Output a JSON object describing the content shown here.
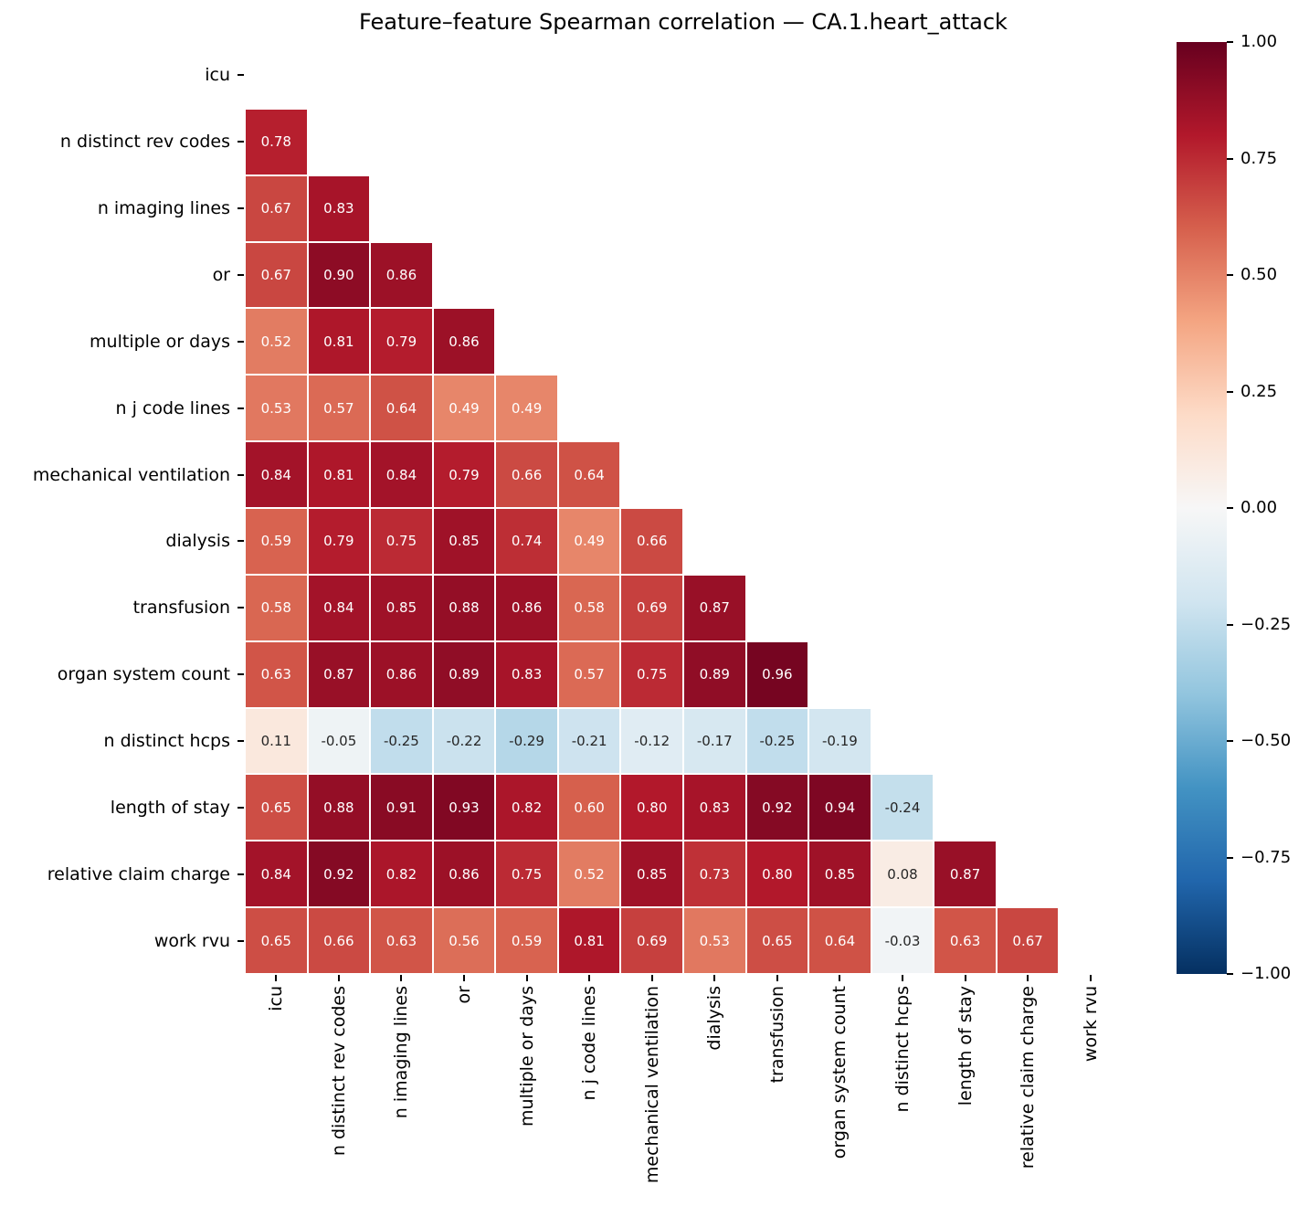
{
  "title": "Feature–feature Spearman correlation — CA.1.heart_attack",
  "chart_data": {
    "type": "heatmap",
    "title": "Feature–feature Spearman correlation — CA.1.heart_attack",
    "labels": [
      "icu",
      "n distinct rev codes",
      "n imaging lines",
      "or",
      "multiple or days",
      "n j code lines",
      "mechanical ventilation",
      "dialysis",
      "transfusion",
      "organ system count",
      "n distinct hcps",
      "length of stay",
      "relative claim charge",
      "work rvu"
    ],
    "mask": "upper triangle and diagonal hidden",
    "matrix_lower_triangle": [
      [],
      [
        0.78
      ],
      [
        0.67,
        0.83
      ],
      [
        0.67,
        0.9,
        0.86
      ],
      [
        0.52,
        0.81,
        0.79,
        0.86
      ],
      [
        0.53,
        0.57,
        0.64,
        0.49,
        0.49
      ],
      [
        0.84,
        0.81,
        0.84,
        0.79,
        0.66,
        0.64
      ],
      [
        0.59,
        0.79,
        0.75,
        0.85,
        0.74,
        0.49,
        0.66
      ],
      [
        0.58,
        0.84,
        0.85,
        0.88,
        0.86,
        0.58,
        0.69,
        0.87
      ],
      [
        0.63,
        0.87,
        0.86,
        0.89,
        0.83,
        0.57,
        0.75,
        0.89,
        0.96
      ],
      [
        0.11,
        -0.05,
        -0.25,
        -0.22,
        -0.29,
        -0.21,
        -0.12,
        -0.17,
        -0.25,
        -0.19
      ],
      [
        0.65,
        0.88,
        0.91,
        0.93,
        0.82,
        0.6,
        0.8,
        0.83,
        0.92,
        0.94,
        -0.24
      ],
      [
        0.84,
        0.92,
        0.82,
        0.86,
        0.75,
        0.52,
        0.85,
        0.73,
        0.8,
        0.85,
        0.08,
        0.87
      ],
      [
        0.65,
        0.66,
        0.63,
        0.56,
        0.59,
        0.81,
        0.69,
        0.53,
        0.65,
        0.64,
        -0.03,
        0.63,
        0.67
      ]
    ],
    "value_format": "2 decimals",
    "colormap": "RdBu_r",
    "vmin": -1.0,
    "vmax": 1.0,
    "grid_on": true,
    "legend_position": "right colorbar",
    "colorbar_ticks": [
      {
        "value": 1.0,
        "label": "1.00"
      },
      {
        "value": 0.75,
        "label": "0.75"
      },
      {
        "value": 0.5,
        "label": "0.50"
      },
      {
        "value": 0.25,
        "label": "0.25"
      },
      {
        "value": 0.0,
        "label": "0.00"
      },
      {
        "value": -0.25,
        "label": "−0.25"
      },
      {
        "value": -0.5,
        "label": "−0.50"
      },
      {
        "value": -0.75,
        "label": "−0.75"
      },
      {
        "value": -1.0,
        "label": "−1.00"
      }
    ]
  },
  "colors": {
    "rdbu_r_stops_low_to_high": [
      "#053061",
      "#2166ac",
      "#4393c3",
      "#92c5de",
      "#d1e5f0",
      "#f7f7f7",
      "#fddbc7",
      "#f4a582",
      "#d6604d",
      "#b2182b",
      "#67001f"
    ],
    "grid_line": "#ffffff",
    "annot_text_dark": "#262626",
    "annot_text_light": "#ffffff",
    "axis_text": "#000000"
  }
}
